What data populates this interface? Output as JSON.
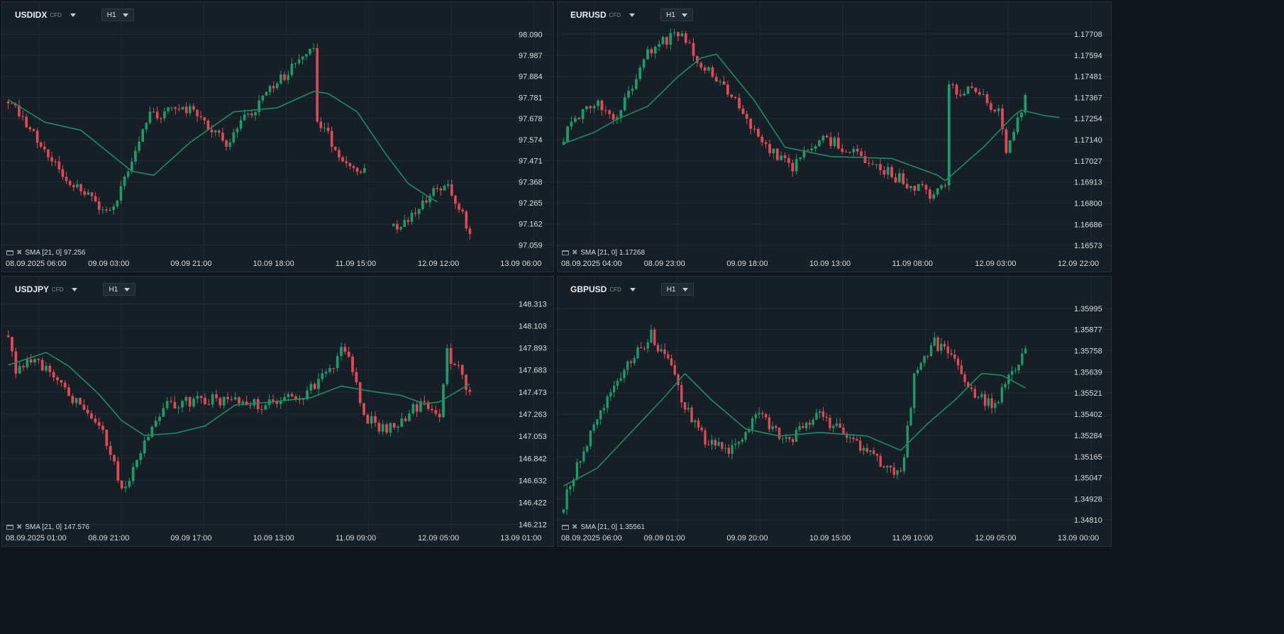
{
  "colors": {
    "background": "#161f25",
    "grid": "#1f2b33",
    "up": "#1f9a6a",
    "down": "#e04a57",
    "sma": "#1a8c66",
    "text": "#d6dde1"
  },
  "panels": [
    {
      "symbol": "USDIDX",
      "tag": "CFD",
      "timeframe": "H1",
      "indicator": "SMA [21, 0] 97.256",
      "chart_data": {
        "type": "candlestick",
        "ylim": [
          97.005,
          98.143
        ],
        "y_ticks": [
          "98.090",
          "97.987",
          "97.884",
          "97.781",
          "97.678",
          "97.574",
          "97.471",
          "97.368",
          "97.265",
          "97.162",
          "97.059"
        ],
        "x_ticks": [
          "08.09.2025   06:00",
          "09.09  03:00",
          "09.09  21:00",
          "10.09  18:00",
          "11.09  15:00",
          "12.09  12:00",
          "13.09  06:00"
        ],
        "candles": 119,
        "price_path": [
          [
            0,
            97.78
          ],
          [
            16,
            97.37
          ],
          [
            28,
            97.21
          ],
          [
            38,
            97.68
          ],
          [
            48,
            97.74
          ],
          [
            60,
            97.56
          ],
          [
            70,
            97.78
          ],
          [
            80,
            97.96
          ],
          [
            84,
            98.02
          ],
          [
            85,
            97.68
          ],
          [
            92,
            97.48
          ],
          [
            96,
            97.43
          ],
          [
            98,
            97.44
          ],
          [
            100,
            null
          ],
          [
            105,
            97.13
          ],
          [
            112,
            97.21
          ],
          [
            118,
            97.33
          ],
          [
            121,
            97.36
          ],
          [
            127,
            97.12
          ]
        ],
        "sma_path": [
          [
            0,
            97.77
          ],
          [
            10,
            97.66
          ],
          [
            20,
            97.62
          ],
          [
            34,
            97.42
          ],
          [
            40,
            97.4
          ],
          [
            50,
            97.56
          ],
          [
            62,
            97.71
          ],
          [
            74,
            97.73
          ],
          [
            84,
            97.81
          ],
          [
            88,
            97.8
          ],
          [
            96,
            97.71
          ],
          [
            104,
            97.5
          ],
          [
            110,
            97.36
          ],
          [
            116,
            97.29
          ],
          [
            118,
            97.27
          ]
        ]
      }
    },
    {
      "symbol": "EURUSD",
      "tag": "CFD",
      "timeframe": "H1",
      "indicator": "SMA [21, 0] 1.17268",
      "chart_data": {
        "type": "candlestick",
        "ylim": [
          1.16516,
          1.17765
        ],
        "y_ticks": [
          "1.17708",
          "1.17594",
          "1.17481",
          "1.17367",
          "1.17254",
          "1.17140",
          "1.17027",
          "1.16913",
          "1.16800",
          "1.16686",
          "1.16573"
        ],
        "x_ticks": [
          "08.09.2025   04:00",
          "08.09  23:00",
          "09.09  18:00",
          "10.09  13:00",
          "11.09  08:00",
          "12.09  03:00",
          "12.09  22:00"
        ],
        "candles": 121,
        "price_path": [
          [
            0,
            1.1716
          ],
          [
            8,
            1.1735
          ],
          [
            14,
            1.1725
          ],
          [
            22,
            1.1762
          ],
          [
            30,
            1.1771
          ],
          [
            36,
            1.1755
          ],
          [
            42,
            1.1744
          ],
          [
            52,
            1.171
          ],
          [
            60,
            1.17
          ],
          [
            68,
            1.1715
          ],
          [
            76,
            1.1708
          ],
          [
            86,
            1.1695
          ],
          [
            96,
            1.1685
          ],
          [
            100,
            1.1688
          ],
          [
            101,
            1.1742
          ],
          [
            110,
            1.1738
          ],
          [
            114,
            1.1728
          ],
          [
            116,
            1.171
          ],
          [
            118,
            1.1718
          ],
          [
            121,
            1.1738
          ]
        ],
        "sma_path": [
          [
            0,
            1.1712
          ],
          [
            8,
            1.1718
          ],
          [
            14,
            1.1725
          ],
          [
            22,
            1.1732
          ],
          [
            30,
            1.1748
          ],
          [
            36,
            1.1758
          ],
          [
            40,
            1.176
          ],
          [
            50,
            1.1735
          ],
          [
            58,
            1.171
          ],
          [
            70,
            1.1705
          ],
          [
            86,
            1.1704
          ],
          [
            98,
            1.1695
          ],
          [
            100,
            1.1692
          ],
          [
            110,
            1.171
          ],
          [
            118,
            1.1727
          ],
          [
            120,
            1.173
          ],
          [
            126,
            1.1727
          ],
          [
            130,
            1.1726
          ]
        ]
      }
    },
    {
      "symbol": "USDJPY",
      "tag": "CFD",
      "timeframe": "H1",
      "indicator": "SMA [21, 0] 147.576",
      "chart_data": {
        "type": "candlestick",
        "ylim": [
          146.155,
          148.37
        ],
        "y_ticks": [
          "148.313",
          "148.103",
          "147.893",
          "147.683",
          "147.473",
          "147.263",
          "147.053",
          "146.842",
          "146.632",
          "146.422",
          "146.212"
        ],
        "x_ticks": [
          "08.09.2025   01:00",
          "08.09  21:00",
          "09.09  17:00",
          "10.09  13:00",
          "11.09  09:00",
          "12.09  05:00",
          "13.09  01:00"
        ],
        "candles": 121,
        "price_path": [
          [
            0,
            148.05
          ],
          [
            2,
            147.68
          ],
          [
            6,
            147.8
          ],
          [
            12,
            147.62
          ],
          [
            18,
            147.38
          ],
          [
            24,
            147.18
          ],
          [
            30,
            146.55
          ],
          [
            32,
            146.6
          ],
          [
            36,
            147.05
          ],
          [
            42,
            147.35
          ],
          [
            54,
            147.4
          ],
          [
            66,
            147.35
          ],
          [
            78,
            147.45
          ],
          [
            86,
            147.7
          ],
          [
            88,
            147.95
          ],
          [
            90,
            147.78
          ],
          [
            94,
            147.25
          ],
          [
            100,
            147.1
          ],
          [
            104,
            147.22
          ],
          [
            110,
            147.4
          ],
          [
            114,
            147.2
          ],
          [
            116,
            147.85
          ],
          [
            120,
            147.62
          ],
          [
            122,
            147.46
          ]
        ],
        "sma_path": [
          [
            0,
            147.73
          ],
          [
            10,
            147.85
          ],
          [
            16,
            147.72
          ],
          [
            24,
            147.45
          ],
          [
            30,
            147.2
          ],
          [
            36,
            147.06
          ],
          [
            44,
            147.08
          ],
          [
            52,
            147.15
          ],
          [
            60,
            147.35
          ],
          [
            70,
            147.38
          ],
          [
            80,
            147.42
          ],
          [
            88,
            147.53
          ],
          [
            96,
            147.48
          ],
          [
            104,
            147.44
          ],
          [
            110,
            147.36
          ],
          [
            114,
            147.38
          ],
          [
            122,
            147.55
          ]
        ]
      }
    },
    {
      "symbol": "GBPUSD",
      "tag": "CFD",
      "timeframe": "H1",
      "indicator": "SMA [21, 0] 1.35561",
      "chart_data": {
        "type": "candlestick",
        "ylim": [
          1.34751,
          1.36054
        ],
        "y_ticks": [
          "1.35995",
          "1.35877",
          "1.35758",
          "1.35639",
          "1.35521",
          "1.35402",
          "1.35284",
          "1.35165",
          "1.35047",
          "1.34928",
          "1.34810"
        ],
        "x_ticks": [
          "08.09.2025   06:00",
          "09.09  01:00",
          "09.09  20:00",
          "10.09  15:00",
          "11.09  10:00",
          "12.09  05:00",
          "13.09  00:00"
        ],
        "candles": 123,
        "price_path": [
          [
            0,
            1.349
          ],
          [
            8,
            1.353
          ],
          [
            18,
            1.3565
          ],
          [
            26,
            1.3585
          ],
          [
            32,
            1.3565
          ],
          [
            36,
            1.3545
          ],
          [
            42,
            1.3525
          ],
          [
            50,
            1.352
          ],
          [
            58,
            1.354
          ],
          [
            66,
            1.3525
          ],
          [
            76,
            1.354
          ],
          [
            86,
            1.3525
          ],
          [
            96,
            1.351
          ],
          [
            100,
            1.3505
          ],
          [
            104,
            1.356
          ],
          [
            110,
            1.358
          ],
          [
            116,
            1.357
          ],
          [
            122,
            1.355
          ],
          [
            128,
            1.3545
          ],
          [
            132,
            1.356
          ],
          [
            137,
            1.3575
          ]
        ],
        "sma_path": [
          [
            0,
            1.35
          ],
          [
            10,
            1.351
          ],
          [
            20,
            1.353
          ],
          [
            30,
            1.355
          ],
          [
            36,
            1.3563
          ],
          [
            44,
            1.3548
          ],
          [
            54,
            1.3532
          ],
          [
            64,
            1.3528
          ],
          [
            76,
            1.353
          ],
          [
            90,
            1.3528
          ],
          [
            100,
            1.352
          ],
          [
            108,
            1.3535
          ],
          [
            116,
            1.3548
          ],
          [
            124,
            1.3563
          ],
          [
            130,
            1.3562
          ],
          [
            137,
            1.3555
          ]
        ]
      }
    }
  ]
}
